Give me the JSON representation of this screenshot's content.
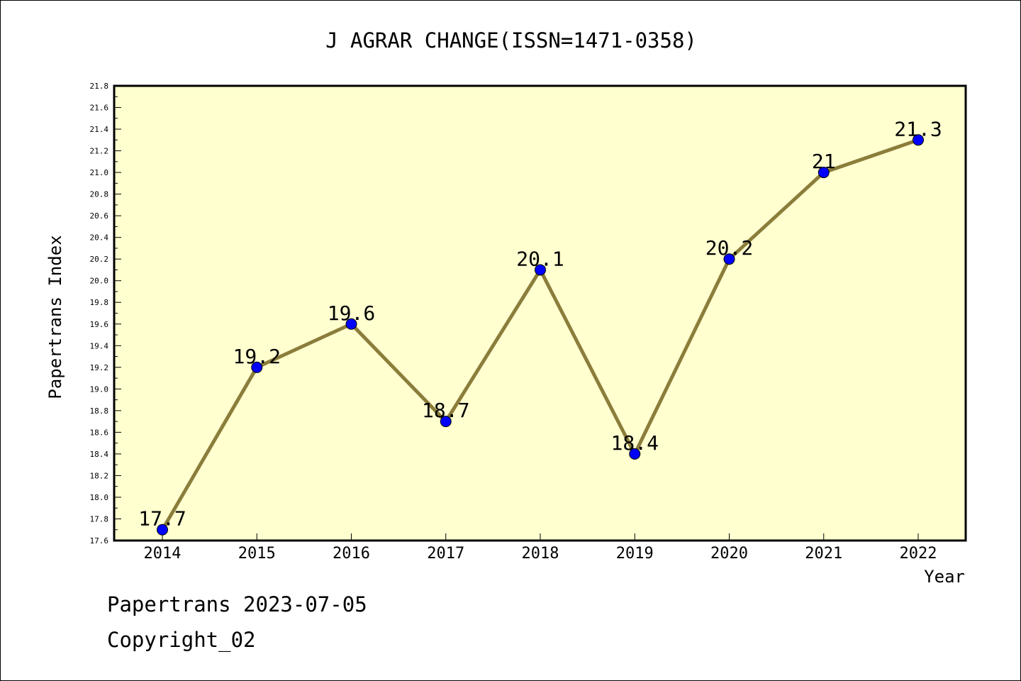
{
  "chart_data": {
    "type": "line",
    "title": "J AGRAR CHANGE(ISSN=1471-0358)",
    "xlabel": "Year",
    "ylabel": "Papertrans Index",
    "categories": [
      "2014",
      "2015",
      "2016",
      "2017",
      "2018",
      "2019",
      "2020",
      "2021",
      "2022"
    ],
    "series": [
      {
        "values": [
          17.7,
          19.2,
          19.6,
          18.7,
          20.1,
          18.4,
          20.2,
          21.0,
          21.3
        ]
      }
    ],
    "data_labels": [
      "17.7",
      "19.2",
      "19.6",
      "18.7",
      "20.1",
      "18.4",
      "20.2",
      "21",
      "21.3"
    ],
    "ylim": [
      17.6,
      21.8
    ],
    "yticks": [
      "17.6",
      "17.8",
      "18.0",
      "18.2",
      "18.4",
      "18.6",
      "18.8",
      "19.0",
      "19.2",
      "19.4",
      "19.6",
      "19.8",
      "20.0",
      "20.2",
      "20.4",
      "20.6",
      "20.8",
      "21.0",
      "21.2",
      "21.4",
      "21.6",
      "21.8"
    ],
    "grid": false,
    "plot_background": "#ffffd0",
    "line_color": "#8b7d3a",
    "marker_color": "#0000ff"
  },
  "footer": {
    "date": "Papertrans 2023-07-05",
    "copyright": "Copyright_02"
  }
}
